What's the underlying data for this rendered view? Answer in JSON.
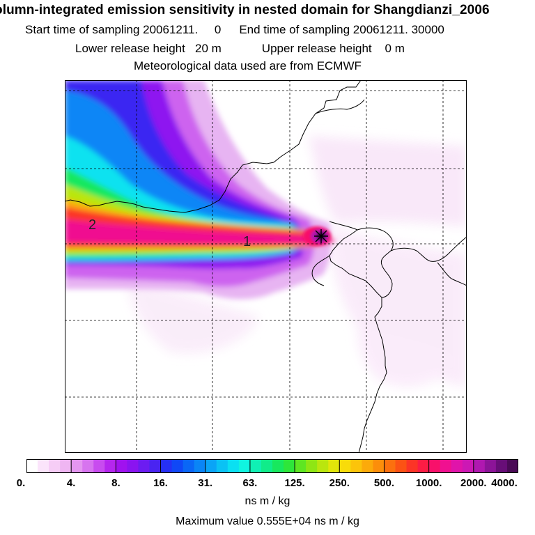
{
  "title": {
    "line1": "olumn-integrated emission sensitivity in nested domain for Shangdianzi_2006",
    "start_label": "Start time of sampling 20061211.",
    "start_value": "0",
    "end_label": "End time of sampling 20061211. 30000",
    "lower_label": "Lower release height",
    "lower_value": "20 m",
    "upper_label": "Upper release height",
    "upper_value": "0 m",
    "met": "Meteorological data used are from ECMWF"
  },
  "map": {
    "markers": [
      {
        "label": "1"
      },
      {
        "label": "2"
      }
    ]
  },
  "colorbar": {
    "labels": [
      "0.",
      "4.",
      "8.",
      "16.",
      "31.",
      "63.",
      "125.",
      "250.",
      "500.",
      "1000.",
      "2000.",
      "4000."
    ],
    "colors": [
      "#ffffff",
      "#fbe4fb",
      "#f6cdf6",
      "#efb5f2",
      "#e496f0",
      "#d774ef",
      "#c84cef",
      "#b526ee",
      "#a012ef",
      "#8a14f0",
      "#6c1cf1",
      "#4a24f1",
      "#2630f4",
      "#1048f6",
      "#0a67f6",
      "#0a85f6",
      "#0aa4f6",
      "#0ac2f4",
      "#0ae0f2",
      "#10f4e0",
      "#10f0b4",
      "#10ec8a",
      "#18e85e",
      "#2ee63a",
      "#5ee622",
      "#8ee614",
      "#bae60e",
      "#e2e60a",
      "#f8dc0a",
      "#fcc40a",
      "#fcaa0a",
      "#fc8e0a",
      "#fc700e",
      "#fc5214",
      "#fc3426",
      "#fc1c44",
      "#f8106a",
      "#f01090",
      "#e014aa",
      "#cc18b4",
      "#b018b0",
      "#8c1498",
      "#680e78",
      "#4a0a56"
    ]
  },
  "units": "ns m / kg",
  "max_value": "Maximum value  0.555E+04 ns m / kg"
}
